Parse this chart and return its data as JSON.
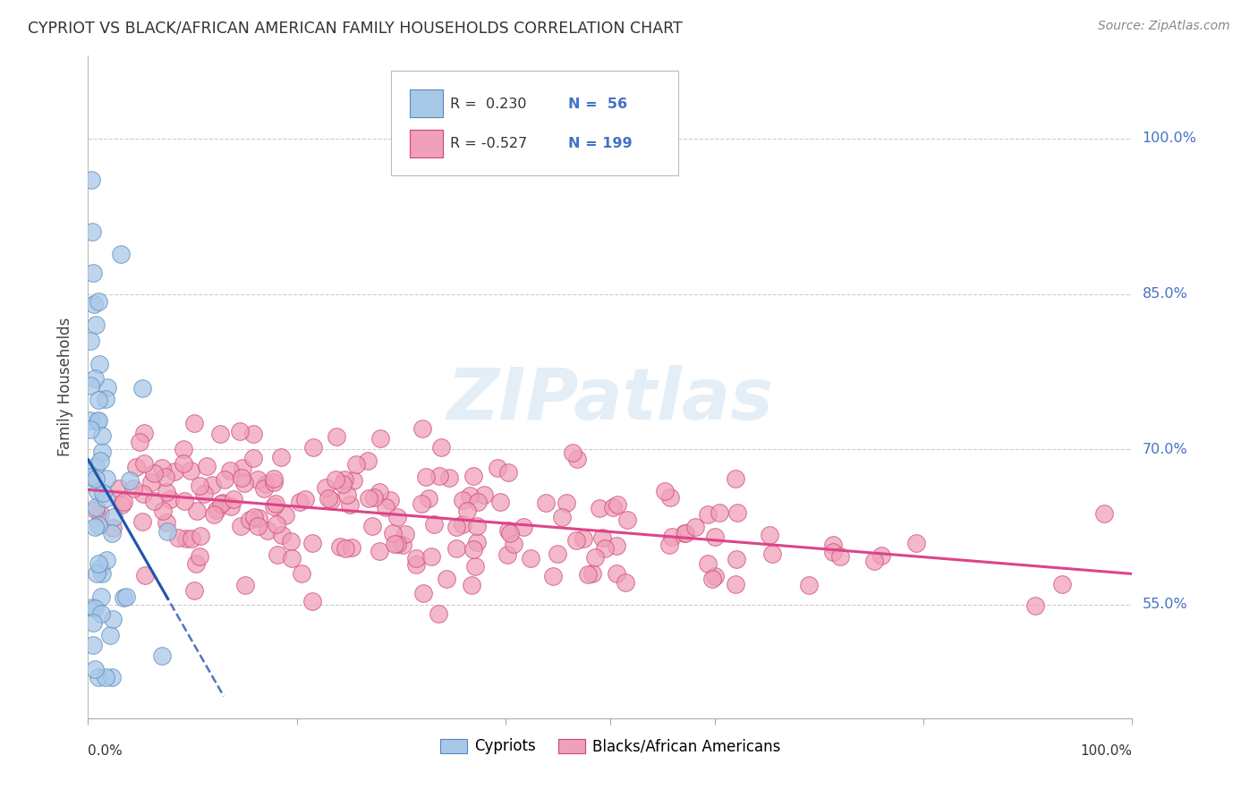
{
  "title": "CYPRIOT VS BLACK/AFRICAN AMERICAN FAMILY HOUSEHOLDS CORRELATION CHART",
  "source": "Source: ZipAtlas.com",
  "ylabel": "Family Households",
  "ytick_labels": [
    "100.0%",
    "85.0%",
    "70.0%",
    "55.0%"
  ],
  "ytick_values": [
    1.0,
    0.85,
    0.7,
    0.55
  ],
  "watermark": "ZIPatlas",
  "cypriot_color": "#a8c8e8",
  "cypriot_edge": "#5588bb",
  "black_color": "#f0a0b8",
  "black_edge": "#cc4477",
  "trend_cypriot_color": "#2255aa",
  "trend_black_color": "#dd4488",
  "xlim": [
    0.0,
    1.0
  ],
  "ylim": [
    0.44,
    1.08
  ],
  "legend_r1": "R =  0.230",
  "legend_n1": "N =  56",
  "legend_r2": "R = -0.527",
  "legend_n2": "N = 199",
  "legend_color_blue": "#4472c4",
  "legend_color_r": "#cc4477"
}
